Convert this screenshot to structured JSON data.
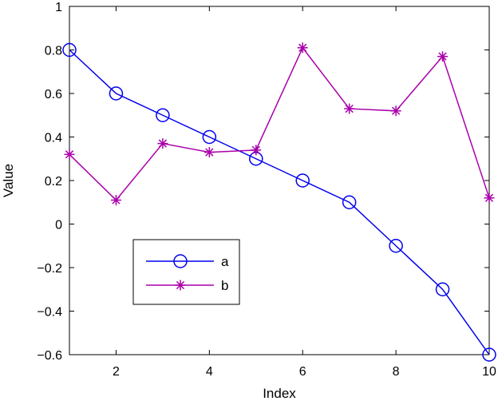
{
  "chart_data": {
    "type": "line",
    "title": "",
    "xlabel": "Index",
    "ylabel": "Value",
    "xlim": [
      1,
      10
    ],
    "ylim": [
      -0.6,
      1
    ],
    "x_ticks": [
      2,
      4,
      6,
      8,
      10
    ],
    "x_tick_labels": [
      "2",
      "4",
      "6",
      "8",
      "10"
    ],
    "y_ticks": [
      -0.6,
      -0.4,
      -0.2,
      0,
      0.2,
      0.4,
      0.6,
      0.8,
      1
    ],
    "y_tick_labels": [
      "−0.6",
      "−0.4",
      "−0.2",
      "0",
      "0.2",
      "0.4",
      "0.6",
      "0.8",
      "1"
    ],
    "grid": false,
    "legend": "lower-left",
    "x": [
      1,
      2,
      3,
      4,
      5,
      6,
      7,
      8,
      9,
      10
    ],
    "series": [
      {
        "name": "a",
        "marker": "circle",
        "color": "#0000ee",
        "values": [
          0.8,
          0.6,
          0.5,
          0.4,
          0.3,
          0.2,
          0.1,
          -0.1,
          -0.3,
          -0.6
        ]
      },
      {
        "name": "b",
        "marker": "asterisk",
        "color": "#aa00aa",
        "values": [
          0.32,
          0.11,
          0.37,
          0.33,
          0.34,
          0.81,
          0.53,
          0.52,
          0.77,
          0.12
        ]
      }
    ]
  }
}
